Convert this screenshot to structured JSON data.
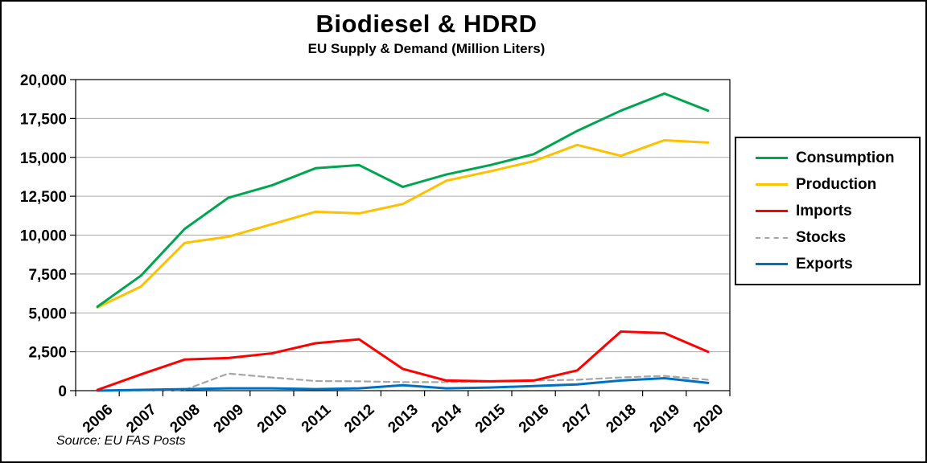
{
  "figure": {
    "title": "Biodiesel & HDRD",
    "subtitle": "EU Supply & Demand (Million Liters)",
    "source": "Source: EU FAS Posts"
  },
  "chart_data": {
    "type": "line",
    "title": "Biodiesel & HDRD",
    "subtitle": "EU Supply & Demand (Million Liters)",
    "xlabel": "",
    "ylabel": "",
    "x": [
      "2006",
      "2007",
      "2008",
      "2009",
      "2010",
      "2011",
      "2012",
      "2013",
      "2014",
      "2015",
      "2016",
      "2017",
      "2018",
      "2019",
      "2020"
    ],
    "series": [
      {
        "name": "Consumption",
        "color": "#00A550",
        "style": "solid",
        "values": [
          5400,
          7400,
          10400,
          12400,
          13200,
          14300,
          14500,
          13100,
          13900,
          14500,
          15200,
          16700,
          18000,
          19100,
          18000
        ]
      },
      {
        "name": "Production",
        "color": "#FFC000",
        "style": "solid",
        "values": [
          5350,
          6700,
          9500,
          9900,
          10700,
          11500,
          11400,
          12000,
          13500,
          14100,
          14750,
          15800,
          15100,
          16100,
          15950
        ]
      },
      {
        "name": "Imports",
        "color": "#FF0000",
        "style": "solid",
        "values": [
          50,
          1050,
          2000,
          2100,
          2400,
          3050,
          3300,
          1400,
          650,
          600,
          650,
          1300,
          3800,
          3700,
          2500
        ]
      },
      {
        "name": "Stocks",
        "color": "#A6A6A6",
        "style": "dashed",
        "values": [
          0,
          0,
          50,
          1100,
          850,
          620,
          600,
          550,
          550,
          580,
          650,
          700,
          850,
          950,
          700
        ]
      },
      {
        "name": "Exports",
        "color": "#0070C0",
        "style": "solid",
        "values": [
          0,
          50,
          100,
          150,
          150,
          100,
          150,
          350,
          150,
          200,
          300,
          400,
          650,
          800,
          500
        ]
      }
    ],
    "ylim": [
      0,
      20000
    ],
    "ytick_step": 2500,
    "ytick_labels": [
      "0",
      "2,500",
      "5,000",
      "7,500",
      "10,000",
      "12,500",
      "15,000",
      "17,500",
      "20,000"
    ],
    "grid": true,
    "legend_position": "right",
    "source": "Source: EU FAS Posts"
  }
}
